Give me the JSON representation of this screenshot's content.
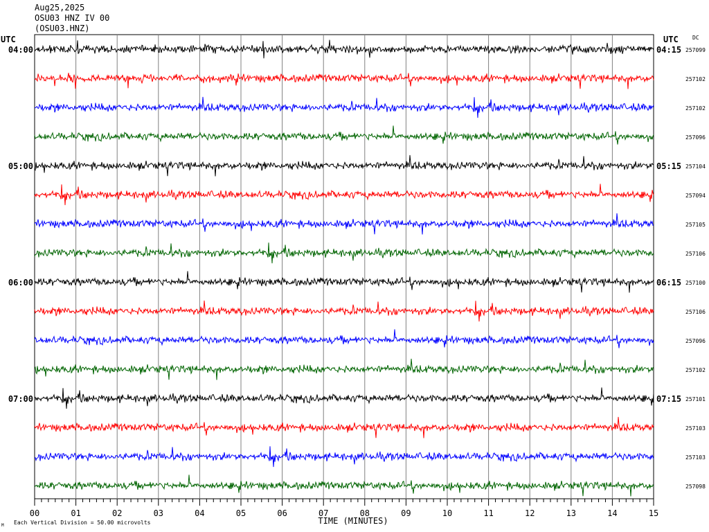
{
  "header": {
    "date": "Aug25,2025",
    "station_line": "OSU03 HNZ IV 00",
    "station_code": "(OSU03.HNZ)"
  },
  "chart_data": {
    "type": "line",
    "title": "",
    "xlabel": "TIME (MINUTES)",
    "ylabel": "",
    "xlim": [
      0,
      15
    ],
    "x_ticks": [
      "00",
      "01",
      "02",
      "03",
      "04",
      "05",
      "06",
      "07",
      "08",
      "09",
      "10",
      "11",
      "12",
      "13",
      "14",
      "15"
    ],
    "left_axis_label": "UTC",
    "right_axis_label": "UTC",
    "dc_label": "DC",
    "grid": true,
    "trace_colors": [
      "#000000",
      "#ff0000",
      "#0000ff",
      "#006400"
    ],
    "left_hour_labels": [
      {
        "row": 0,
        "text": "04:00"
      },
      {
        "row": 4,
        "text": "05:00"
      },
      {
        "row": 8,
        "text": "06:00"
      },
      {
        "row": 12,
        "text": "07:00"
      }
    ],
    "right_time_labels": [
      {
        "row": 0,
        "text": "04:15"
      },
      {
        "row": 4,
        "text": "05:15"
      },
      {
        "row": 8,
        "text": "06:15"
      },
      {
        "row": 12,
        "text": "07:15"
      }
    ],
    "dc_values": [
      "257099",
      "257102",
      "257102",
      "257096",
      "257104",
      "257094",
      "257105",
      "257106",
      "257100",
      "257106",
      "257096",
      "257102",
      "257101",
      "257103",
      "257103",
      "257098"
    ],
    "traces": 16,
    "footer_note": "Each Vertical Division =   50.00 microvolts",
    "footer_mark": "M"
  }
}
